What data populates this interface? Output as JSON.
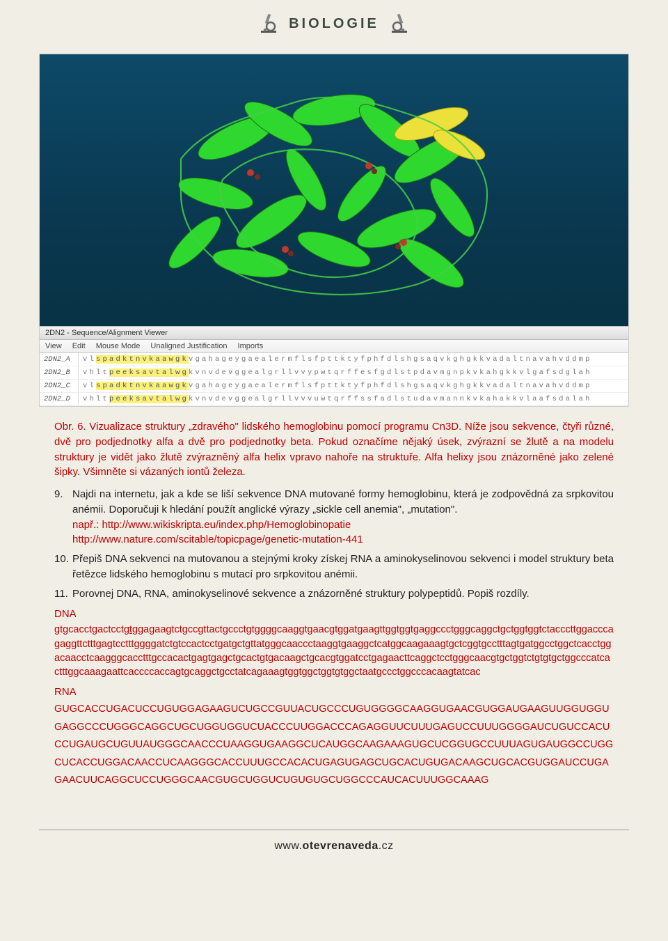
{
  "header": {
    "title": "BIOLOGIE"
  },
  "figure": {
    "viewer_title": "2DN2 - Sequence/Alignment Viewer",
    "menu": [
      "View",
      "Edit",
      "Mouse Mode",
      "Unaligned Justification",
      "Imports"
    ],
    "rows": [
      {
        "name": "2DN2_A",
        "pre": "vl",
        "hl": "spadktnvkaawgk",
        "post": "vgahageygaealermflsfpttktyfphfdlshgsaqvkghgkkvadaltnavahvddmp"
      },
      {
        "name": "2DN2_B",
        "pre": "vhlt",
        "hl": "peeksavtalwg",
        "post": "kvnvdevggealgrllvvypwtqrffesfgdlstpdavmgnpkvkahgkkvlgafsdglah"
      },
      {
        "name": "2DN2_C",
        "pre": "vl",
        "hl": "spadktnvkaawgk",
        "post": "vgahageygaealermflsfpttktyfphfdlshgsaqvkghgkkvadaltnavahvddmp"
      },
      {
        "name": "2DN2_D",
        "pre": "vhlt",
        "hl": "peeksavtalwg",
        "post": "kvnvdevggealgrllvvvuwtqrffssfadlstudavmannkvkahakkvlaafsdalah"
      }
    ],
    "viz_background": "#0d4a68",
    "ribbon_color": "#2fd82f",
    "highlight_color": "#faf07a"
  },
  "caption": "Obr. 6. Vizualizace struktury „zdravého\" lidského hemoglobinu pomocí programu Cn3D. Níže jsou sekvence, čtyři různé, dvě pro podjednotky alfa a dvě pro podjednotky beta. Pokud označíme nějaký úsek, zvýrazní se žlutě a na modelu struktury je vidět jako žlutě zvýrazněný alfa helix vpravo nahoře na struktuře. Alfa helixy jsou znázorněné jako zelené šipky. Všimněte si vázaných iontů železa.",
  "items": {
    "i9": {
      "num": "9.",
      "text_a": "Najdi na internetu, jak a kde se liší sekvence DNA mutované formy hemoglobinu, která je zodpovědná za srpkovitou anémii. Doporučuji k hledání použít anglické výrazy „sickle cell anemia\", „mutation\".",
      "eg": "např.: ",
      "link1": "http://www.wikiskripta.eu/index.php/Hemoglobinopatie",
      "link2": "http://www.nature.com/scitable/topicpage/genetic-mutation-441"
    },
    "i10": {
      "num": "10.",
      "text": "Přepiš DNA sekvenci na mutovanou a stejnými kroky získej RNA a aminokyselinovou sekvenci i model struktury beta řetězce lidského hemoglobinu s mutací pro srpkovitou anémii."
    },
    "i11": {
      "num": "11.",
      "text": "Porovnej DNA, RNA, aminokyselinové sekvence a znázorněné struktury polypeptidů. Popiš rozdíly."
    }
  },
  "dna": {
    "label": "DNA",
    "pre": "gtgcacctgactcct",
    "mut": "gtg",
    "post": "gagaagtctgccgttactgccctgtggggcaaggtgaacgtggatgaagttggtggtgaggccctgggcaggctgctggtggtctacccttggacccagaggttctttgagtcctttggggatctgtccactcctgatgctgttatgggcaaccctaaggtgaaggctcatggcaagaaagtgctcggtgcctttagtgatggcctggctcacctggacaacctcaagggcacctttgccacactgagtgagctgcactgtgacaagctgcacgtggatcctgagaacttcaggctcctgggcaacgtgctggtctgtgtgctggcccatcactttggcaaagaattcaccccaccagtgcaggctgcctatcagaaagtggtggctggtgtggctaatgccctggcccacaagtatcac"
  },
  "rna": {
    "label": "RNA",
    "seq": "GUGCACCUGACUCCUGUGGAGAAGUCUGCCGUUACUGCCCUGUGGGGCAAGGUGAACGUGGAUGAAGUUGGUGGUGAGGCCCUGGGCAGGCUGCUGGUGGUCUACCCUUGGACCCAGAGGUUCUUUGAGUCCUUUGGGGAUCUGUCCACUCCUGAUGCUGUUAUGGGCAACCCUAAGGUGAAGGCUCAUGGCAAGAAAGUGCUCGGUGCCUUUAGUGAUGGCCUGGCUCACCUGGACAACCUCAAGGGCACCUUUGCCACACUGAGUGAGCUGCACUGUGACAAGCUGCACGUGGAUCCUGAGAACUUCAGGCUCCUGGGCAACGUGCUGGUCUGUGUGCUGGCCCAUCACUUUGGCAAAG"
  },
  "footer": {
    "pre": "www.",
    "bold": "otevrenaveda",
    "post": ".cz"
  }
}
